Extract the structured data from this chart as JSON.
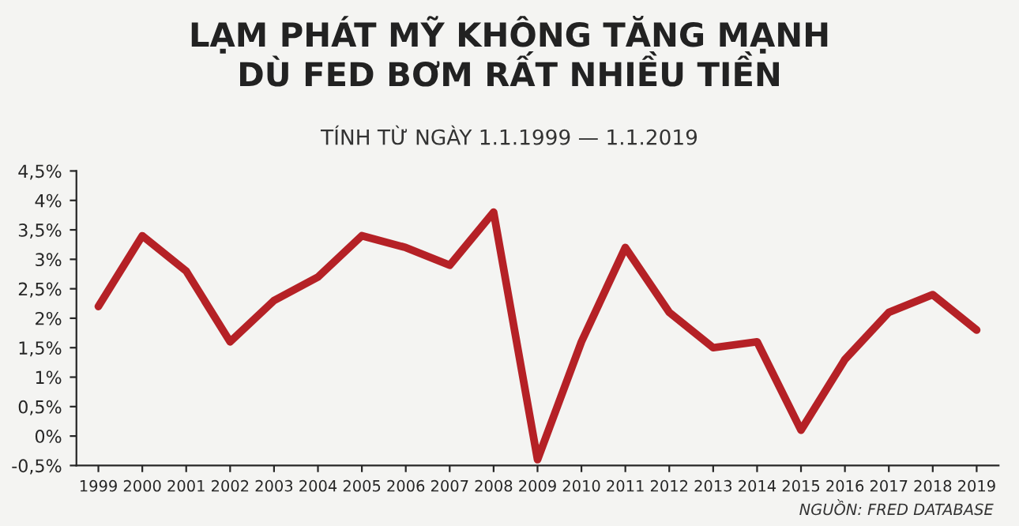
{
  "chart_data": {
    "type": "line",
    "title": "LẠM PHÁT MỸ KHÔNG TĂNG MẠNH\nDÙ FED BƠM RẤT NHIỀU TIỀN",
    "subtitle": "TÍNH TỪ NGÀY 1.1.1999 — 1.1.2019",
    "categories": [
      "1999",
      "2000",
      "2001",
      "2002",
      "2003",
      "2004",
      "2005",
      "2006",
      "2007",
      "2008",
      "2009",
      "2010",
      "2011",
      "2012",
      "2013",
      "2014",
      "2015",
      "2016",
      "2017",
      "2018",
      "2019"
    ],
    "series": [
      {
        "color": "#b52126",
        "values": [
          2.2,
          3.4,
          2.8,
          1.6,
          2.3,
          2.7,
          3.4,
          3.2,
          2.9,
          3.8,
          -0.4,
          1.6,
          3.2,
          2.1,
          1.5,
          1.6,
          0.1,
          1.3,
          2.1,
          2.4,
          1.8
        ]
      }
    ],
    "ylim": [
      -0.5,
      4.5
    ],
    "yticks": [
      {
        "value": -0.5,
        "label": "-0,5%"
      },
      {
        "value": 0,
        "label": "0%"
      },
      {
        "value": 0.5,
        "label": "0,5%"
      },
      {
        "value": 1,
        "label": "1%"
      },
      {
        "value": 1.5,
        "label": "1,5%"
      },
      {
        "value": 2,
        "label": "2%"
      },
      {
        "value": 2.5,
        "label": "2,5%"
      },
      {
        "value": 3,
        "label": "3%"
      },
      {
        "value": 3.5,
        "label": "3,5%"
      },
      {
        "value": 4,
        "label": "4%"
      },
      {
        "value": 4.5,
        "label": "4,5%"
      }
    ],
    "grid": false,
    "legend": false,
    "marker": "none",
    "line_style": "solid",
    "annotations": [
      "NGUỒN: FRED DATABASE"
    ]
  }
}
